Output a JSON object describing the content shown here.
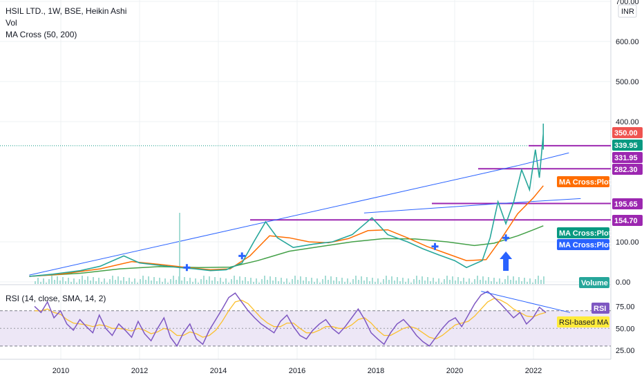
{
  "chart_data": [
    {
      "type": "line",
      "title": "HSIL LTD., 1W, BSE, Heikin Ashi",
      "indicators": [
        "Vol",
        "MA Cross (50, 200)"
      ],
      "currency": "INR",
      "price_axis": {
        "ticks": [
          "700.00",
          "600.00",
          "500.00",
          "400.00",
          "100.00",
          "0.00"
        ],
        "scale": "log"
      },
      "x_ticks": [
        "2010",
        "2012",
        "2014",
        "2016",
        "2018",
        "2020",
        "2022"
      ],
      "x_range": [
        2009.0,
        2023.0
      ],
      "price_series": {
        "name": "price",
        "points": [
          [
            2009.2,
            25
          ],
          [
            2009.8,
            30
          ],
          [
            2010.5,
            38
          ],
          [
            2011.0,
            48
          ],
          [
            2011.6,
            70
          ],
          [
            2012.0,
            55
          ],
          [
            2012.5,
            50
          ],
          [
            2013.0,
            45
          ],
          [
            2013.4,
            42
          ],
          [
            2013.8,
            38
          ],
          [
            2014.2,
            40
          ],
          [
            2014.6,
            55
          ],
          [
            2014.9,
            100
          ],
          [
            2015.2,
            150
          ],
          [
            2015.5,
            110
          ],
          [
            2015.9,
            88
          ],
          [
            2016.4,
            95
          ],
          [
            2016.9,
            100
          ],
          [
            2017.4,
            118
          ],
          [
            2017.9,
            160
          ],
          [
            2018.3,
            118
          ],
          [
            2018.8,
            100
          ],
          [
            2019.2,
            85
          ],
          [
            2019.6,
            72
          ],
          [
            2020.0,
            60
          ],
          [
            2020.3,
            45
          ],
          [
            2020.7,
            60
          ],
          [
            2020.9,
            110
          ],
          [
            2021.1,
            200
          ],
          [
            2021.3,
            145
          ],
          [
            2021.5,
            200
          ],
          [
            2021.7,
            280
          ],
          [
            2021.9,
            230
          ],
          [
            2022.05,
            330
          ],
          [
            2022.15,
            260
          ],
          [
            2022.25,
            370
          ]
        ]
      },
      "ma50": {
        "name": "MA Cross:Plot",
        "points": [
          [
            2009.2,
            25
          ],
          [
            2010.0,
            30
          ],
          [
            2011.0,
            42
          ],
          [
            2011.8,
            58
          ],
          [
            2012.5,
            52
          ],
          [
            2013.2,
            45
          ],
          [
            2013.8,
            40
          ],
          [
            2014.3,
            42
          ],
          [
            2014.8,
            70
          ],
          [
            2015.3,
            115
          ],
          [
            2015.8,
            110
          ],
          [
            2016.3,
            100
          ],
          [
            2016.8,
            98
          ],
          [
            2017.3,
            108
          ],
          [
            2017.8,
            128
          ],
          [
            2018.3,
            130
          ],
          [
            2018.8,
            110
          ],
          [
            2019.3,
            90
          ],
          [
            2019.8,
            75
          ],
          [
            2020.3,
            60
          ],
          [
            2020.8,
            62
          ],
          [
            2021.2,
            110
          ],
          [
            2021.6,
            170
          ],
          [
            2022.0,
            210
          ],
          [
            2022.25,
            240
          ]
        ]
      },
      "ma200": {
        "name": "MA Cross:Plot",
        "points": [
          [
            2009.2,
            25
          ],
          [
            2010.5,
            32
          ],
          [
            2011.5,
            42
          ],
          [
            2012.5,
            47
          ],
          [
            2013.5,
            45
          ],
          [
            2014.3,
            46
          ],
          [
            2015.0,
            60
          ],
          [
            2015.8,
            80
          ],
          [
            2016.6,
            90
          ],
          [
            2017.4,
            100
          ],
          [
            2018.2,
            108
          ],
          [
            2019.0,
            107
          ],
          [
            2019.8,
            100
          ],
          [
            2020.5,
            92
          ],
          [
            2021.0,
            97
          ],
          [
            2021.6,
            115
          ],
          [
            2022.0,
            130
          ],
          [
            2022.25,
            140
          ]
        ]
      },
      "markers": [
        [
          2013.2,
          "cross"
        ],
        [
          2014.6,
          "cross"
        ],
        [
          2019.5,
          "cross"
        ],
        [
          2021.3,
          "cross"
        ]
      ],
      "price_tags": [
        {
          "label": "350.00",
          "color": "#ef5350"
        },
        {
          "label": "339.95",
          "color": "#089981"
        },
        {
          "label": "331.95",
          "color": "#9c27b0"
        },
        {
          "label": "282.30",
          "color": "#9c27b0"
        },
        {
          "label": "MA Cross:Plot",
          "color": "#ff6d00"
        },
        {
          "label": "195.65",
          "color": "#9c27b0"
        },
        {
          "label": "154.70",
          "color": "#9c27b0"
        },
        {
          "label": "MA Cross:Plot",
          "color": "#089981"
        },
        {
          "label": "MA Cross:Plot",
          "color": "#2962ff"
        },
        {
          "label": "Volume",
          "color": "#26a69a"
        }
      ],
      "horizontal_levels": [
        339.95,
        282.3,
        195.65,
        154.7
      ]
    },
    {
      "type": "line",
      "title": "RSI (14, close, SMA, 14, 2)",
      "y_ticks": [
        "75.00",
        "50.00",
        "25.00"
      ],
      "ylim": [
        15,
        98
      ],
      "band": [
        30,
        70
      ],
      "rsi": {
        "name": "RSI",
        "values": [
          75,
          68,
          80,
          62,
          70,
          55,
          48,
          60,
          52,
          45,
          65,
          50,
          42,
          55,
          48,
          40,
          58,
          44,
          36,
          50,
          62,
          40,
          30,
          45,
          55,
          38,
          32,
          48,
          60,
          72,
          85,
          90,
          80,
          70,
          62,
          55,
          50,
          45,
          58,
          65,
          52,
          42,
          38,
          48,
          55,
          60,
          50,
          44,
          52,
          62,
          72,
          60,
          45,
          38,
          32,
          45,
          55,
          60,
          52,
          42,
          35,
          30,
          40,
          50,
          58,
          62,
          52,
          65,
          78,
          88,
          92,
          85,
          78,
          70,
          62,
          68,
          55,
          62,
          74,
          68
        ]
      },
      "rsi_ma": {
        "name": "RSI-based MA",
        "values": [
          70,
          70,
          72,
          68,
          66,
          60,
          56,
          55,
          54,
          52,
          54,
          53,
          50,
          50,
          49,
          47,
          50,
          48,
          44,
          46,
          50,
          48,
          42,
          42,
          46,
          44,
          40,
          42,
          48,
          58,
          70,
          80,
          82,
          78,
          70,
          62,
          56,
          52,
          52,
          56,
          56,
          50,
          45,
          45,
          48,
          52,
          52,
          50,
          50,
          54,
          60,
          62,
          56,
          48,
          42,
          42,
          46,
          50,
          52,
          50,
          45,
          40,
          38,
          42,
          48,
          54,
          56,
          58,
          64,
          72,
          80,
          84,
          82,
          78,
          72,
          68,
          64,
          63,
          66,
          68
        ]
      },
      "tags": [
        {
          "label": "RSI",
          "color": "#7e57c2"
        },
        {
          "label": "RSI-based MA",
          "color": "#ffeb3b"
        }
      ]
    }
  ]
}
